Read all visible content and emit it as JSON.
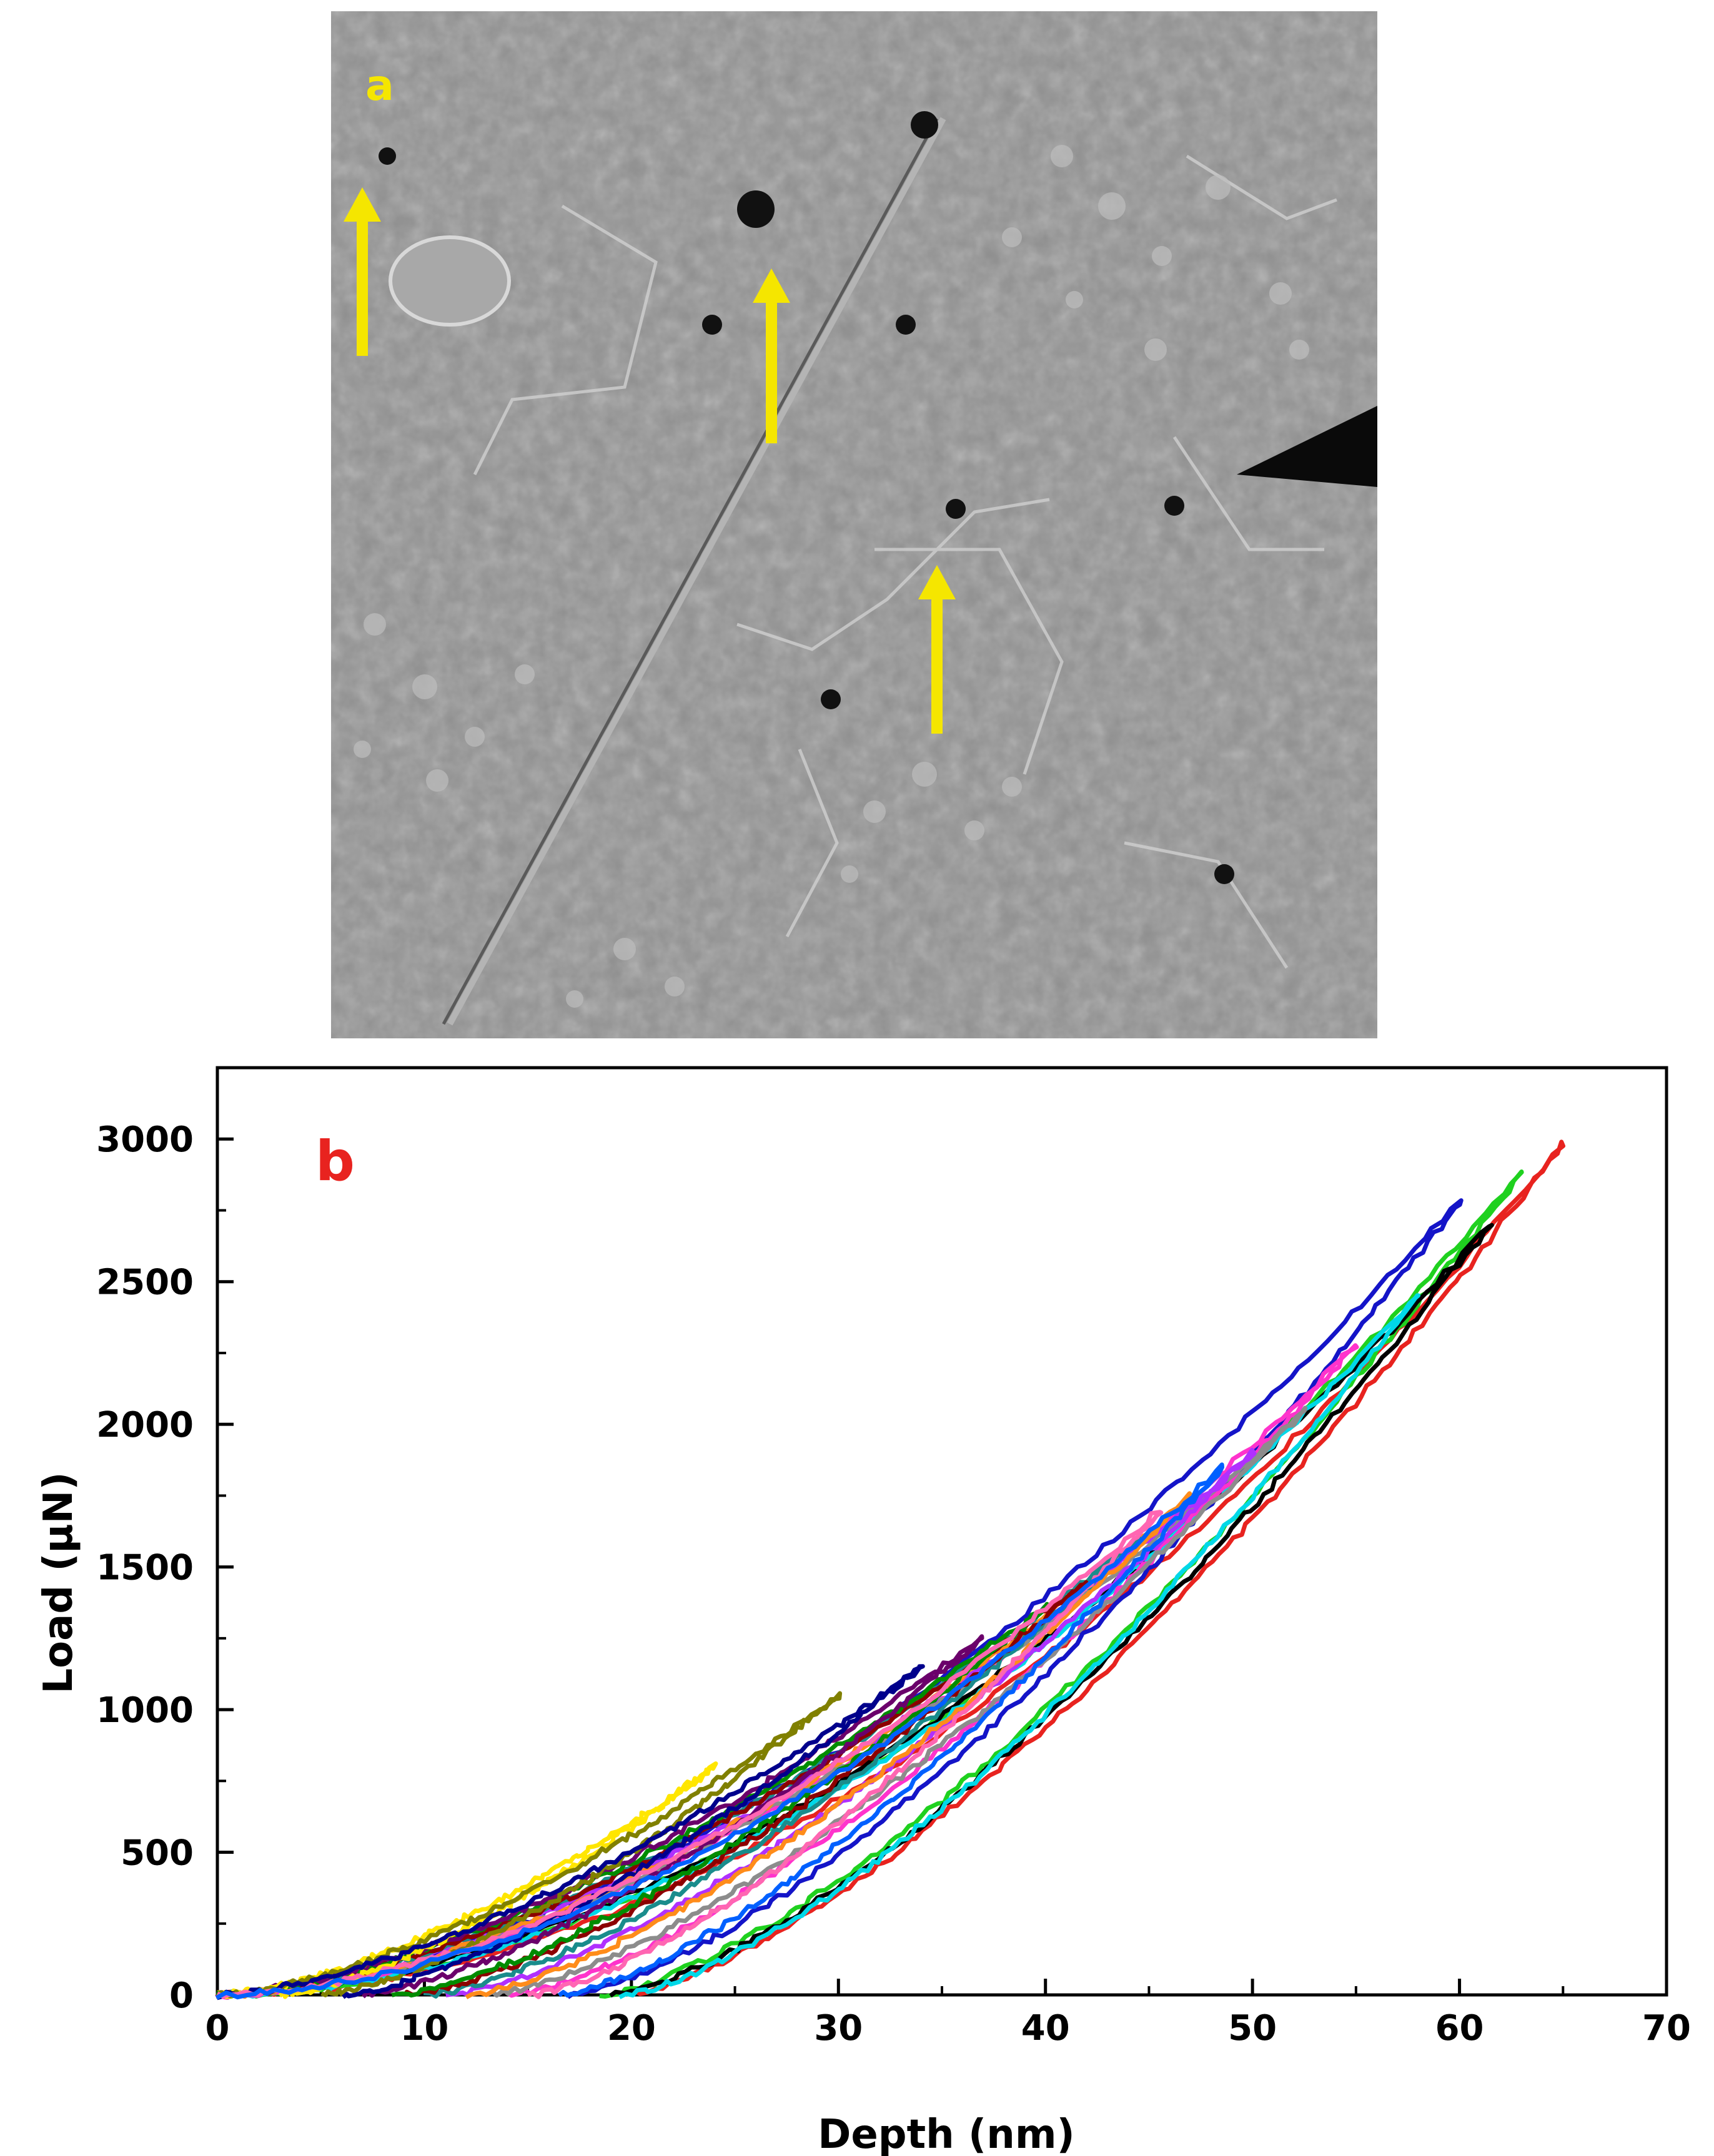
{
  "panel_a": {
    "label": "a",
    "label_color": "#f5e600",
    "arrow_color": "#f5e600",
    "background": "#8e8e8e",
    "arrow_count": 3
  },
  "panel_b": {
    "label": "b",
    "label_color": "#e8231f"
  },
  "chart_data": {
    "type": "line",
    "title": "",
    "xlabel": "Depth (nm)",
    "ylabel": "Load (µN)",
    "xlim": [
      0,
      70
    ],
    "ylim": [
      0,
      3250
    ],
    "x_ticks": [
      0,
      10,
      20,
      30,
      40,
      50,
      60,
      70
    ],
    "y_ticks": [
      0,
      500,
      1000,
      1500,
      2000,
      2500,
      3000
    ],
    "grid": false,
    "legend": "none",
    "series": [
      {
        "color": "#e8231f",
        "max_depth": 65.0,
        "max_load": 2980,
        "residual_depth": 19.5,
        "loading_exponent": 1.9
      },
      {
        "color": "#1fd11f",
        "max_depth": 63.0,
        "max_load": 2880,
        "residual_depth": 18.5,
        "loading_exponent": 1.85
      },
      {
        "color": "#1414c8",
        "max_depth": 60.0,
        "max_load": 2780,
        "residual_depth": 17.0,
        "loading_exponent": 1.7
      },
      {
        "color": "#000000",
        "max_depth": 61.5,
        "max_load": 2700,
        "residual_depth": 19.0,
        "loading_exponent": 1.8
      },
      {
        "color": "#00d8e8",
        "max_depth": 58.0,
        "max_load": 2450,
        "residual_depth": 19.5,
        "loading_exponent": 1.85
      },
      {
        "color": "#ff33cc",
        "max_depth": 55.0,
        "max_load": 2280,
        "residual_depth": 14.0,
        "loading_exponent": 1.75
      },
      {
        "color": "#8c8c8c",
        "max_depth": 52.5,
        "max_load": 2050,
        "residual_depth": 13.0,
        "loading_exponent": 1.7
      },
      {
        "color": "#b030ff",
        "max_depth": 50.0,
        "max_load": 1900,
        "residual_depth": 11.0,
        "loading_exponent": 1.65
      },
      {
        "color": "#ff8c1a",
        "max_depth": 47.0,
        "max_load": 1750,
        "residual_depth": 12.0,
        "loading_exponent": 1.7
      },
      {
        "color": "#1a8c8c",
        "max_depth": 44.5,
        "max_load": 1600,
        "residual_depth": 10.0,
        "loading_exponent": 1.6
      },
      {
        "color": "#8c0000",
        "max_depth": 42.0,
        "max_load": 1450,
        "residual_depth": 9.0,
        "loading_exponent": 1.6
      },
      {
        "color": "#008c00",
        "max_depth": 40.0,
        "max_load": 1360,
        "residual_depth": 8.5,
        "loading_exponent": 1.55
      },
      {
        "color": "#6b006b",
        "max_depth": 37.0,
        "max_load": 1250,
        "residual_depth": 7.0,
        "loading_exponent": 1.55
      },
      {
        "color": "#ffe600",
        "max_depth": 24.0,
        "max_load": 800,
        "residual_depth": 3.0,
        "loading_exponent": 1.55
      },
      {
        "color": "#808000",
        "max_depth": 30.0,
        "max_load": 1050,
        "residual_depth": 5.0,
        "loading_exponent": 1.55
      },
      {
        "color": "#00008c",
        "max_depth": 34.0,
        "max_load": 1150,
        "residual_depth": 6.0,
        "loading_exponent": 1.55
      },
      {
        "color": "#ff66b2",
        "max_depth": 45.5,
        "max_load": 1700,
        "residual_depth": 15.0,
        "loading_exponent": 1.75
      },
      {
        "color": "#0060ff",
        "max_depth": 48.5,
        "max_load": 1850,
        "residual_depth": 16.5,
        "loading_exponent": 1.8
      }
    ]
  }
}
